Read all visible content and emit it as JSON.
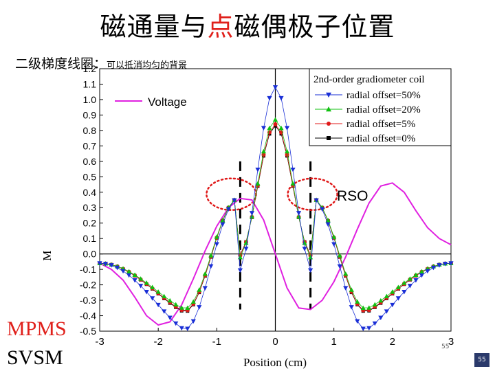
{
  "slide": {
    "title_part1": "磁通量与",
    "title_highlight": "点",
    "title_part2": "磁偶极子位置",
    "subtitle_main": "二级梯度线圈：",
    "subtitle_note": "可以抵消均匀的背景",
    "mpms_label": "MPMS",
    "svsm_label": "SVSM",
    "small_slide_number": "55",
    "page_number": "55",
    "rso_label": "RSO"
  },
  "colors": {
    "voltage": "#e020e0",
    "offset50": "#1a2fd6",
    "offset20": "#10c010",
    "offset5": "#e01818",
    "offset0": "#000000",
    "rso": "#e01818",
    "title_highlight": "#e0201b"
  },
  "chart_data": {
    "type": "line",
    "xlabel": "Position (cm)",
    "ylabel": "M",
    "xlim": [
      -3,
      3
    ],
    "ylim": [
      -0.5,
      1.2
    ],
    "x_ticks": [
      "-3",
      "-2",
      "-1",
      "0",
      "1",
      "2",
      "3"
    ],
    "y_ticks": [
      "-0.5",
      "-0.4",
      "-0.3",
      "-0.2",
      "-0.1",
      "0.0",
      "0.1",
      "0.2",
      "0.3",
      "0.4",
      "0.5",
      "0.6",
      "0.7",
      "0.8",
      "0.9",
      "1.0",
      "1.1",
      "1.2"
    ],
    "legend_voltage": "Voltage",
    "legend_title": "2nd-order gradiometer coil",
    "series": [
      {
        "name": "radial offset=50%",
        "key": "offset50",
        "peak": 1.08,
        "trough": -0.49,
        "marker": "triangle-down"
      },
      {
        "name": "radial offset=20%",
        "key": "offset20",
        "peak": 0.87,
        "trough": -0.355,
        "marker": "triangle-up"
      },
      {
        "name": "radial offset=5%",
        "key": "offset5",
        "peak": 0.84,
        "trough": -0.37,
        "marker": "circle"
      },
      {
        "name": "radial offset=0%",
        "key": "offset0",
        "peak": 0.83,
        "trough": -0.375,
        "marker": "square"
      }
    ],
    "voltage": {
      "name": "Voltage",
      "x": [
        -3.0,
        -2.8,
        -2.6,
        -2.4,
        -2.2,
        -2.0,
        -1.8,
        -1.6,
        -1.4,
        -1.2,
        -1.0,
        -0.8,
        -0.6,
        -0.4,
        -0.2,
        0.0,
        0.2,
        0.4,
        0.6,
        0.8,
        1.0,
        1.2,
        1.4,
        1.6,
        1.8,
        2.0,
        2.2,
        2.4,
        2.6,
        2.8,
        3.0
      ],
      "y": [
        -0.06,
        -0.1,
        -0.17,
        -0.28,
        -0.4,
        -0.46,
        -0.44,
        -0.33,
        -0.16,
        0.02,
        0.18,
        0.3,
        0.36,
        0.35,
        0.22,
        0.0,
        -0.22,
        -0.35,
        -0.36,
        -0.3,
        -0.18,
        -0.02,
        0.16,
        0.33,
        0.44,
        0.46,
        0.4,
        0.28,
        0.17,
        0.1,
        0.06
      ]
    },
    "rso_markers_x": [
      -0.6,
      0.6
    ]
  }
}
